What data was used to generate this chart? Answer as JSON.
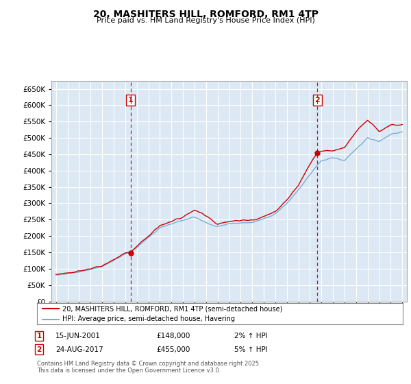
{
  "title": "20, MASHITERS HILL, ROMFORD, RM1 4TP",
  "subtitle": "Price paid vs. HM Land Registry's House Price Index (HPI)",
  "ylim": [
    0,
    675000
  ],
  "yticks": [
    0,
    50000,
    100000,
    150000,
    200000,
    250000,
    300000,
    350000,
    400000,
    450000,
    500000,
    550000,
    600000,
    650000
  ],
  "background_color": "#ffffff",
  "plot_bg_color": "#dce9f5",
  "grid_color": "#ffffff",
  "purchase_marker_color": "#cc0000",
  "hpi_line_color": "#7aadd4",
  "price_line_color": "#cc0000",
  "vline_color": "#cc0000",
  "purchase_years": [
    2001.46,
    2017.64
  ],
  "purchase_prices": [
    148000,
    455000
  ],
  "purchase_labels": [
    "1",
    "2"
  ],
  "legend_entry1": "20, MASHITERS HILL, ROMFORD, RM1 4TP (semi-detached house)",
  "legend_entry2": "HPI: Average price, semi-detached house, Havering",
  "footnote1": "Contains HM Land Registry data © Crown copyright and database right 2025.",
  "footnote2": "This data is licensed under the Open Government Licence v3.0.",
  "table_rows": [
    {
      "label": "1",
      "date": "15-JUN-2001",
      "price": "£148,000",
      "change": "2% ↑ HPI"
    },
    {
      "label": "2",
      "date": "24-AUG-2017",
      "price": "£455,000",
      "change": "5% ↑ HPI"
    }
  ],
  "hpi_anchors_x": [
    1995,
    1996,
    1997,
    1998,
    1999,
    2000,
    2001,
    2002,
    2003,
    2004,
    2005,
    2006,
    2007,
    2008,
    2009,
    2010,
    2011,
    2012,
    2013,
    2014,
    2015,
    2016,
    2017,
    2018,
    2019,
    2020,
    2021,
    2022,
    2023,
    2024,
    2025
  ],
  "hpi_anchors_y": [
    80000,
    85000,
    90000,
    98000,
    108000,
    125000,
    145000,
    165000,
    195000,
    225000,
    238000,
    248000,
    258000,
    240000,
    228000,
    238000,
    240000,
    242000,
    252000,
    268000,
    300000,
    340000,
    390000,
    430000,
    440000,
    430000,
    465000,
    500000,
    490000,
    510000,
    520000
  ],
  "price_anchors_x": [
    1995,
    1996,
    1997,
    1998,
    1999,
    2000,
    2001,
    2001.46,
    2002,
    2003,
    2004,
    2005,
    2006,
    2007,
    2008,
    2009,
    2010,
    2011,
    2012,
    2013,
    2014,
    2015,
    2016,
    2017,
    2017.64,
    2018,
    2019,
    2020,
    2021,
    2022,
    2023,
    2024,
    2025
  ],
  "price_anchors_y": [
    83000,
    87000,
    92000,
    100000,
    110000,
    127000,
    148000,
    148000,
    168000,
    200000,
    232000,
    245000,
    258000,
    280000,
    260000,
    236000,
    245000,
    248000,
    248000,
    260000,
    275000,
    310000,
    355000,
    420000,
    455000,
    460000,
    460000,
    470000,
    520000,
    555000,
    520000,
    540000,
    540000
  ]
}
